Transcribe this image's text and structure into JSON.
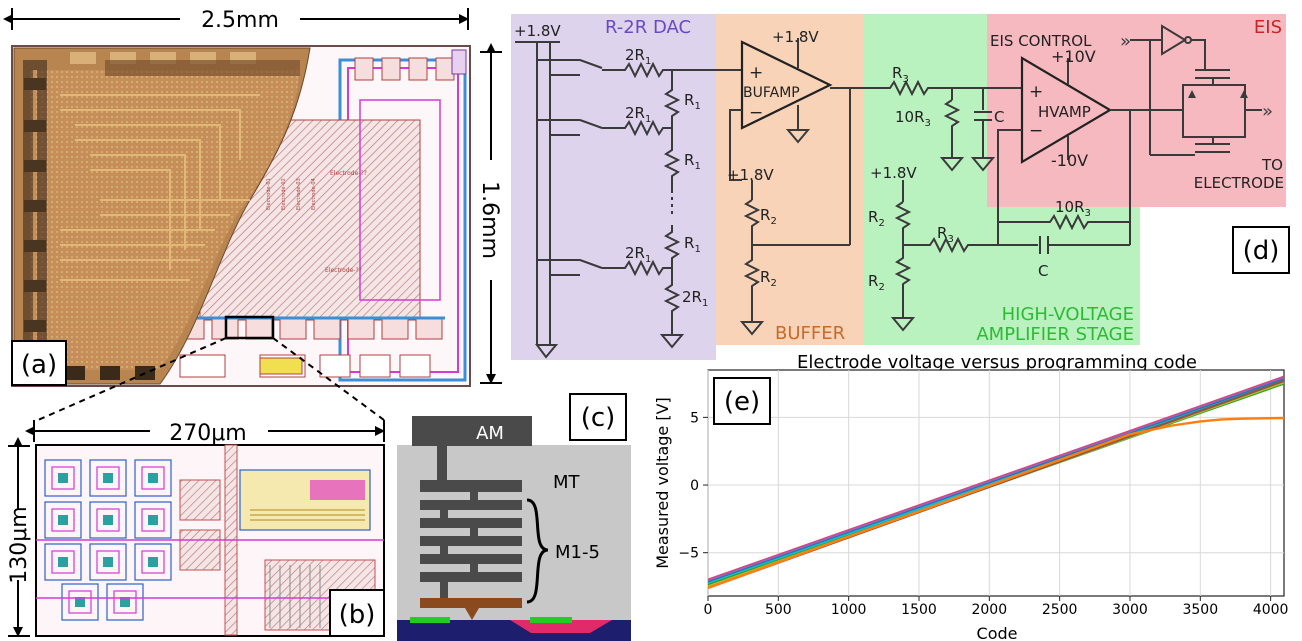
{
  "panel_a": {
    "label": "(a)",
    "width_dim": "2.5mm",
    "height_dim": "1.6mm",
    "chip_labels": [
      "Electrode-??",
      "Electrode-??",
      "Electrode-01",
      "Electrode-02",
      "Electrode-03",
      "Electrode-04"
    ]
  },
  "panel_b": {
    "label": "(b)",
    "width_dim": "270μm",
    "height_dim": "130μm"
  },
  "panel_c": {
    "label": "(c)",
    "layers": {
      "top": "AM",
      "thick": "MT",
      "stack": "M1-5"
    }
  },
  "panel_d": {
    "label": "(d)",
    "dac": {
      "title": "R-2R DAC",
      "supply": "+1.8V"
    },
    "buffer": {
      "title": "BUFFER",
      "amp": "BUFAMP",
      "supply_top": "+1.8V",
      "supply_div": "+1.8V"
    },
    "hv": {
      "title_line1": "HIGH-VOLTAGE",
      "title_line2": "AMPLIFIER STAGE",
      "amp": "HVAMP",
      "vpos": "+10V",
      "vneg": "-10V",
      "supply_div": "+1.8V"
    },
    "eis": {
      "title": "EIS",
      "control": "EIS CONTROL",
      "out_line1": "TO",
      "out_line2": "ELECTRODE"
    },
    "colors": {
      "dac_bg": "#ddd3ec",
      "buffer_bg": "#f8d3b8",
      "hv_bg": "#b9f2bf",
      "eis_bg": "#f6b9c0",
      "dac_title": "#6a49c4",
      "buffer_title": "#c86a2a",
      "hv_title": "#2dbb34",
      "eis_title": "#c42525"
    }
  },
  "panel_e": {
    "label": "(e)",
    "chart_data": {
      "type": "line",
      "title": "Electrode voltage versus programming code",
      "xlabel": "Code",
      "ylabel": "Measured voltage [V]",
      "xlim": [
        0,
        4095
      ],
      "ylim": [
        -8.2,
        8.5
      ],
      "xticks": [
        0,
        500,
        1000,
        1500,
        2000,
        2500,
        3000,
        3500,
        4000
      ],
      "yticks": [
        -5,
        0,
        5
      ],
      "grid": true,
      "series": [
        {
          "color": "#e0407a",
          "x": [
            0,
            4095
          ],
          "y": [
            -7.0,
            8.0
          ]
        },
        {
          "color": "#9467bd",
          "x": [
            0,
            4095
          ],
          "y": [
            -7.1,
            7.9
          ]
        },
        {
          "color": "#1f77b4",
          "x": [
            0,
            4095
          ],
          "y": [
            -7.2,
            7.8
          ]
        },
        {
          "color": "#17becf",
          "x": [
            0,
            4095
          ],
          "y": [
            -7.3,
            7.7
          ]
        },
        {
          "color": "#2ca02c",
          "x": [
            0,
            4095
          ],
          "y": [
            -7.4,
            7.5
          ]
        },
        {
          "color": "#bcbd22",
          "x": [
            0,
            4095
          ],
          "y": [
            -7.5,
            7.6
          ]
        },
        {
          "color": "#8c564b",
          "x": [
            0,
            4095
          ],
          "y": [
            -7.6,
            7.7
          ]
        },
        {
          "color": "#ff7f0e",
          "x": [
            0,
            500,
            1000,
            1500,
            2000,
            2500,
            3000,
            3300,
            3500,
            3650,
            3800,
            4095
          ],
          "y": [
            -7.6,
            -5.7,
            -3.8,
            -1.95,
            -0.05,
            1.85,
            3.75,
            4.4,
            4.7,
            4.85,
            4.9,
            4.95
          ]
        }
      ]
    }
  }
}
